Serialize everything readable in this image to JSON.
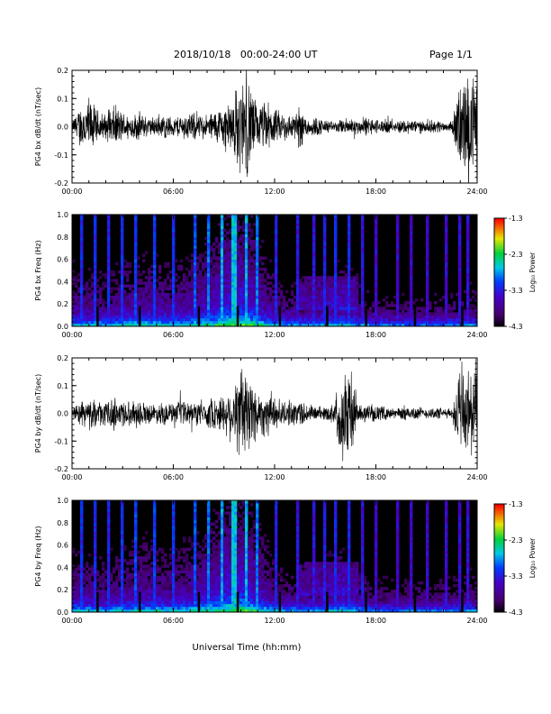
{
  "header": {
    "title": "2018/10/18   00:00-24:00 UT",
    "page": "Page 1/1"
  },
  "xlabel": "Universal Time (hh:mm)",
  "colorbar": {
    "label": "Log₁₀ Power",
    "ticks": [
      "-1.3",
      "-2.3",
      "-3.3",
      "-4.3"
    ],
    "range": [
      -4.3,
      -1.3
    ]
  },
  "chart_data": [
    {
      "type": "line",
      "ylabel": "PG4 bx dB/dt (nT/sec)",
      "x_ticks": [
        "00:00",
        "06:00",
        "12:00",
        "18:00",
        "24:00"
      ],
      "y_ticks": [
        "0.2",
        "0.1",
        "0.0",
        "-0.1",
        "-0.2"
      ],
      "xlim": [
        0,
        24
      ],
      "ylim": [
        -0.2,
        0.2
      ],
      "envelope": {
        "hours": [
          0,
          0.5,
          1,
          1.5,
          2,
          2.5,
          3,
          3.5,
          4,
          4.5,
          5,
          5.5,
          6,
          6.5,
          7,
          7.5,
          8,
          8.5,
          9,
          9.5,
          10,
          10.5,
          11,
          11.5,
          12,
          12.5,
          13,
          13.5,
          14,
          14.5,
          15,
          15.5,
          16,
          16.5,
          17,
          17.5,
          18,
          18.5,
          19,
          19.5,
          20,
          20.5,
          21,
          21.5,
          22,
          22.5,
          23,
          23.5,
          24
        ],
        "amplitude": [
          0.02,
          0.09,
          0.12,
          0.07,
          0.05,
          0.09,
          0.06,
          0.05,
          0.06,
          0.04,
          0.04,
          0.05,
          0.04,
          0.05,
          0.06,
          0.05,
          0.05,
          0.07,
          0.09,
          0.12,
          0.2,
          0.2,
          0.08,
          0.11,
          0.07,
          0.06,
          0.05,
          0.09,
          0.04,
          0.04,
          0.03,
          0.02,
          0.03,
          0.04,
          0.03,
          0.04,
          0.03,
          0.03,
          0.02,
          0.03,
          0.03,
          0.03,
          0.02,
          0.03,
          0.02,
          0.02,
          0.2,
          0.2,
          0.2
        ]
      }
    },
    {
      "type": "heatmap",
      "ylabel": "PG4 bx Freq (Hz)",
      "x_ticks": [
        "00:00",
        "06:00",
        "12:00",
        "18:00",
        "24:00"
      ],
      "y_ticks": [
        "1.0",
        "0.8",
        "0.6",
        "0.4",
        "0.2",
        "0.0"
      ],
      "xlim": [
        0,
        24
      ],
      "ylim": [
        0,
        1.0
      ],
      "zlim": [
        -4.3,
        -1.3
      ],
      "spike_hours": [
        0.6,
        1.3,
        2.2,
        3.0,
        3.8,
        4.9,
        6.0,
        7.3,
        8.1,
        8.9,
        9.6,
        10.3,
        11.0,
        12.1,
        13.4,
        14.3,
        14.9,
        15.6,
        16.4,
        17.2,
        18.0,
        19.3,
        20.1,
        21.0,
        22.1,
        22.9,
        23.5
      ],
      "base_power": {
        "hours": [
          0,
          2,
          4,
          6,
          8,
          9.5,
          10.5,
          12,
          14,
          15,
          16,
          18,
          20,
          22,
          24
        ],
        "log_power": [
          -3.7,
          -3.8,
          -3.6,
          -3.7,
          -3.5,
          -3.2,
          -3.3,
          -3.8,
          -3.9,
          -3.8,
          -3.7,
          -4.0,
          -4.0,
          -4.0,
          -3.9
        ]
      }
    },
    {
      "type": "line",
      "ylabel": "PG4 by dB/dt (nT/sec)",
      "x_ticks": [
        "00:00",
        "06:00",
        "12:00",
        "18:00",
        "24:00"
      ],
      "y_ticks": [
        "0.2",
        "0.1",
        "0.0",
        "-0.1",
        "-0.2"
      ],
      "xlim": [
        0,
        24
      ],
      "ylim": [
        -0.2,
        0.2
      ],
      "envelope": {
        "hours": [
          0,
          0.5,
          1,
          1.5,
          2,
          2.5,
          3,
          3.5,
          4,
          4.5,
          5,
          5.5,
          6,
          6.5,
          7,
          7.5,
          8,
          8.5,
          9,
          9.5,
          10,
          10.5,
          11,
          11.5,
          12,
          12.5,
          13,
          13.5,
          14,
          14.5,
          15,
          15.5,
          16,
          16.5,
          17,
          17.5,
          18,
          18.5,
          19,
          19.5,
          20,
          20.5,
          21,
          21.5,
          22,
          22.5,
          23,
          23.5,
          24
        ],
        "amplitude": [
          0.02,
          0.05,
          0.06,
          0.05,
          0.05,
          0.07,
          0.06,
          0.05,
          0.06,
          0.04,
          0.04,
          0.05,
          0.04,
          0.05,
          0.05,
          0.05,
          0.06,
          0.07,
          0.08,
          0.12,
          0.2,
          0.2,
          0.09,
          0.1,
          0.07,
          0.05,
          0.05,
          0.06,
          0.04,
          0.03,
          0.03,
          0.04,
          0.2,
          0.2,
          0.03,
          0.04,
          0.03,
          0.03,
          0.02,
          0.03,
          0.03,
          0.03,
          0.02,
          0.03,
          0.02,
          0.02,
          0.2,
          0.2,
          0.2
        ]
      }
    },
    {
      "type": "heatmap",
      "ylabel": "PG4 by Freq (Hz)",
      "x_ticks": [
        "00:00",
        "06:00",
        "12:00",
        "18:00",
        "24:00"
      ],
      "y_ticks": [
        "1.0",
        "0.8",
        "0.6",
        "0.4",
        "0.2",
        "0.0"
      ],
      "xlim": [
        0,
        24
      ],
      "ylim": [
        0,
        1.0
      ],
      "zlim": [
        -4.3,
        -1.3
      ],
      "spike_hours": [
        0.6,
        1.3,
        2.2,
        3.0,
        3.8,
        4.9,
        6.0,
        7.3,
        8.1,
        8.9,
        9.6,
        10.3,
        11.0,
        12.1,
        13.4,
        14.3,
        14.9,
        15.6,
        16.4,
        17.2,
        18.0,
        19.3,
        20.1,
        21.0,
        22.1,
        22.9,
        23.5
      ],
      "base_power": {
        "hours": [
          0,
          2,
          4,
          6,
          8,
          9.5,
          10.5,
          12,
          14,
          15,
          16,
          18,
          20,
          22,
          24
        ],
        "log_power": [
          -3.7,
          -3.8,
          -3.6,
          -3.7,
          -3.5,
          -3.2,
          -3.3,
          -3.8,
          -3.9,
          -3.8,
          -3.7,
          -4.0,
          -4.0,
          -4.0,
          -3.9
        ]
      }
    }
  ]
}
